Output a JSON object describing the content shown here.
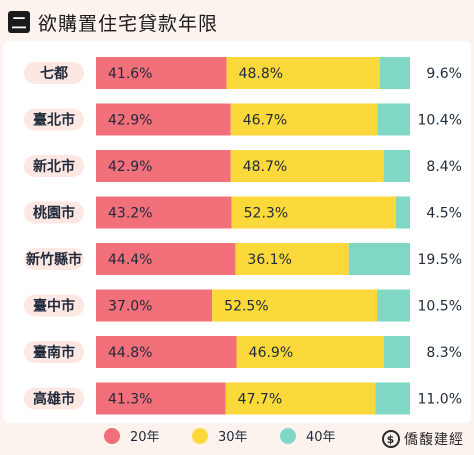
{
  "header": {
    "badge": "二",
    "title": "欲購置住宅貸款年限"
  },
  "chart_data": {
    "type": "bar",
    "stacked": true,
    "orientation": "horizontal",
    "categories": [
      "七都",
      "臺北市",
      "新北市",
      "桃園市",
      "新竹縣市",
      "臺中市",
      "臺南市",
      "高雄市"
    ],
    "series": [
      {
        "name": "20年",
        "color": "#f2707a",
        "values": [
          41.6,
          42.9,
          42.9,
          43.2,
          44.4,
          37.0,
          44.8,
          41.3
        ],
        "labels": [
          "41.6%",
          "42.9%",
          "42.9%",
          "43.2%",
          "44.4%",
          "37.0%",
          "44.8%",
          "41.3%"
        ]
      },
      {
        "name": "30年",
        "color": "#fbd93a",
        "values": [
          48.8,
          46.7,
          48.7,
          52.3,
          36.1,
          52.5,
          46.9,
          47.7
        ],
        "labels": [
          "48.8%",
          "46.7%",
          "48.7%",
          "52.3%",
          "36.1%",
          "52.5%",
          "46.9%",
          "47.7%"
        ]
      },
      {
        "name": "40年",
        "color": "#7fd7c4",
        "values": [
          9.6,
          10.4,
          8.4,
          4.5,
          19.5,
          10.5,
          8.3,
          11.0
        ],
        "labels": [
          "9.6%",
          "10.4%",
          "8.4%",
          "4.5%",
          "19.5%",
          "10.5%",
          "8.3%",
          "11.0%"
        ]
      }
    ],
    "xlim": [
      0,
      100
    ],
    "legend_position": "bottom"
  },
  "footer": {
    "logo_mark": "$",
    "brand": "僑馥建經"
  }
}
